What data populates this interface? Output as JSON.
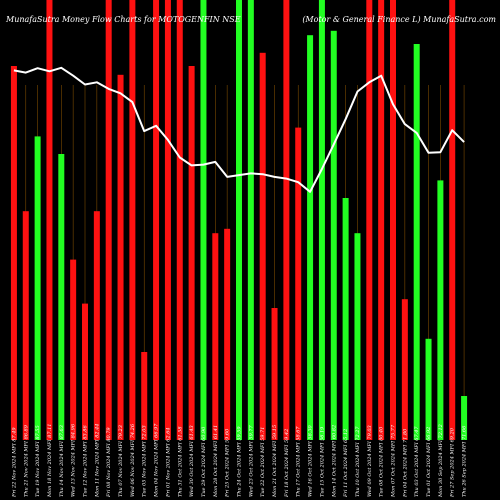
{
  "chart_data": {
    "type": "bar",
    "title": "MunafaSutra Money Flow Charts for MOTOGENFIN NSE",
    "subtitle": "(Motor & General Finance L) MunafaSutra.com",
    "ylim": [
      0,
      100
    ],
    "grid": true,
    "colors": {
      "up": "#22ff22",
      "down": "#ff1111",
      "line": "#ffffff",
      "grid": "#7a4a00",
      "background": "#000000"
    },
    "categories": [
      "Fri 22 Nov 2024 MFI 87.49",
      "Thu 21 Nov 2024 MFI 86.89",
      "Tue 19 Nov 2024 MFI 87.55",
      "Mon 18 Nov 2024 MFI 87.11",
      "Thu 14 Nov 2024 MFI 87.63",
      "Wed 13 Nov 2024 MFI 84.96",
      "Tue 12 Nov 2024 MFI 83.86",
      "Mon 11 Nov 2024 MFI 82.44",
      "Fri 08 Nov 2024 MFI 80.79",
      "Thu 07 Nov 2024 MFI 79.23",
      "Wed 06 Nov 2024 MFI 74.26",
      "Tue 05 Nov 2024 MFI 72.03",
      "Mon 04 Nov 2024 MFI 66.97",
      "Fri 01 Nov 2024 MFI 62.64",
      "Thu 31 Oct 2024 MFI 61.58",
      "Wed 30 Oct 2024 MFI 61.43",
      "Tue 29 Oct 2024 MFI 60.90",
      "Mon 28 Oct 2024 MFI 61.41",
      "Fri 25 Oct 2024 MFI 59.60",
      "Thu 24 Oct 2024 MFI 59.59",
      "Wed 23 Oct 2024 MFI 59.77",
      "Tue 22 Oct 2024 MFI 59.71",
      "Mon 21 Oct 2024 MFI 59.15",
      "Fri 18 Oct 2024 MFI 59.42",
      "Thu 17 Oct 2024 MFI 58.67",
      "Wed 16 Oct 2024 MFI 58.30",
      "Tue 15 Oct 2024 MFI 56.19",
      "Mon 14 Oct 2024 MFI 60.82",
      "Fri 11 Oct 2024 MFI 65.12",
      "Thu 10 Oct 2024 MFI 72.27",
      "Wed 09 Oct 2024 MFI 79.03",
      "Tue 08 Oct 2024 MFI 80.40",
      "Mon 07 Oct 2024 MFI 75.77",
      "Fri 04 Oct 2024 MFI 71.80",
      "Thu 03 Oct 2024 MFI 67.47",
      "Tue 01 Oct 2024 MFI 66.92",
      "Mon 30 Sep 2024 MFI 72.12",
      "Fri 27 Sep 2024 MFI 69.20",
      "Thu 26 Sep 2024 MFI 71.66"
    ],
    "series": [
      {
        "type": "bar",
        "values": [
          85,
          52,
          69,
          100,
          65,
          41,
          31,
          52,
          100,
          83,
          100,
          20,
          100,
          100,
          100,
          85,
          100,
          47,
          48,
          100,
          100,
          88,
          30,
          100,
          71,
          92,
          100,
          93,
          55,
          47,
          100,
          100,
          100,
          32,
          90,
          23,
          59,
          100,
          10
        ],
        "directions": [
          "down",
          "down",
          "up",
          "down",
          "up",
          "down",
          "down",
          "down",
          "down",
          "down",
          "down",
          "down",
          "down",
          "down",
          "down",
          "down",
          "up",
          "down",
          "down",
          "up",
          "up",
          "down",
          "down",
          "down",
          "down",
          "up",
          "up",
          "up",
          "up",
          "up",
          "down",
          "down",
          "down",
          "down",
          "up",
          "up",
          "up",
          "down",
          "up"
        ]
      },
      {
        "type": "line",
        "values": [
          84,
          83.5,
          84.5,
          83.8,
          84.6,
          82.8,
          80.8,
          81.3,
          79.8,
          78.8,
          76.8,
          70.2,
          71.4,
          68.2,
          64.2,
          62.4,
          62.6,
          63.2,
          59.8,
          60.2,
          60.6,
          60.4,
          59.8,
          59.4,
          58.6,
          56.4,
          61.6,
          67.2,
          72.9,
          79.2,
          81.3,
          82.8,
          76.3,
          71.8,
          69.8,
          65.3,
          65.4,
          70.4,
          67.7
        ]
      }
    ]
  }
}
